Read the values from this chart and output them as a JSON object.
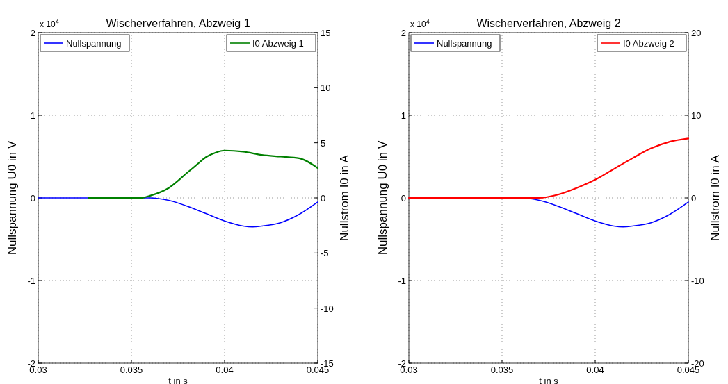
{
  "chart_data": [
    {
      "type": "line",
      "title": "Wischerverfahren, Abzweig 1",
      "xlabel": "t in s",
      "ylabel": "Nullspannung U0 in V",
      "y2label": "Nullstrom I0 in A",
      "annotations": [
        "x 10$^{4}$"
      ],
      "xlim": [
        0.03,
        0.045
      ],
      "xticks": [
        0.03,
        0.035,
        0.04,
        0.045
      ],
      "ylim": [
        -2,
        2
      ],
      "yticks": [
        -2,
        -1,
        0,
        1,
        2
      ],
      "y2lim": [
        -15,
        15
      ],
      "y2ticks": [
        -15,
        -10,
        -5,
        0,
        5,
        10,
        15
      ],
      "grid": true,
      "legend": "top",
      "series": [
        {
          "name": "Nullspannung",
          "color": "#0000ff",
          "x": [
            0.03,
            0.035,
            0.036,
            0.037,
            0.038,
            0.039,
            0.04,
            0.041,
            0.0415,
            0.042,
            0.043,
            0.044,
            0.045
          ],
          "values": [
            0,
            0,
            0,
            -0.03,
            -0.1,
            -0.19,
            -0.28,
            -0.34,
            -0.35,
            -0.34,
            -0.3,
            -0.2,
            -0.05
          ]
        },
        {
          "name": "I0 Abzweig 1",
          "color": "#008000",
          "axis": "y2",
          "x": [
            0.0327,
            0.0355,
            0.036,
            0.037,
            0.038,
            0.0385,
            0.039,
            0.0395,
            0.04,
            0.041,
            0.042,
            0.043,
            0.044,
            0.045
          ],
          "values": [
            0,
            0,
            0.2,
            0.9,
            2.3,
            3.0,
            3.7,
            4.1,
            4.3,
            4.2,
            3.9,
            3.75,
            3.6,
            2.7
          ]
        }
      ]
    },
    {
      "type": "line",
      "title": "Wischerverfahren, Abzweig 2",
      "xlabel": "t in s",
      "ylabel": "Nullspannung U0 in V",
      "y2label": "Nullstrom I0 in A",
      "annotations": [
        "x 10$^{4}$"
      ],
      "xlim": [
        0.03,
        0.045
      ],
      "xticks": [
        0.03,
        0.035,
        0.04,
        0.045
      ],
      "ylim": [
        -2,
        2
      ],
      "yticks": [
        -2,
        -1,
        0,
        1,
        2
      ],
      "y2lim": [
        -20,
        20
      ],
      "y2ticks": [
        -20,
        -10,
        0,
        10,
        20
      ],
      "grid": true,
      "legend": "top",
      "series": [
        {
          "name": "Nullspannung",
          "color": "#0000ff",
          "x": [
            0.03,
            0.035,
            0.036,
            0.037,
            0.038,
            0.039,
            0.04,
            0.041,
            0.0415,
            0.042,
            0.043,
            0.044,
            0.045
          ],
          "values": [
            0,
            0,
            0,
            -0.03,
            -0.1,
            -0.19,
            -0.28,
            -0.34,
            -0.35,
            -0.34,
            -0.3,
            -0.2,
            -0.05
          ]
        },
        {
          "name": "I0 Abzweig 2",
          "color": "#ff0000",
          "axis": "y2",
          "x": [
            0.03,
            0.037,
            0.038,
            0.039,
            0.04,
            0.041,
            0.042,
            0.043,
            0.044,
            0.045
          ],
          "values": [
            0,
            0,
            0.4,
            1.2,
            2.2,
            3.5,
            4.8,
            6.0,
            6.8,
            7.2
          ]
        }
      ]
    }
  ]
}
